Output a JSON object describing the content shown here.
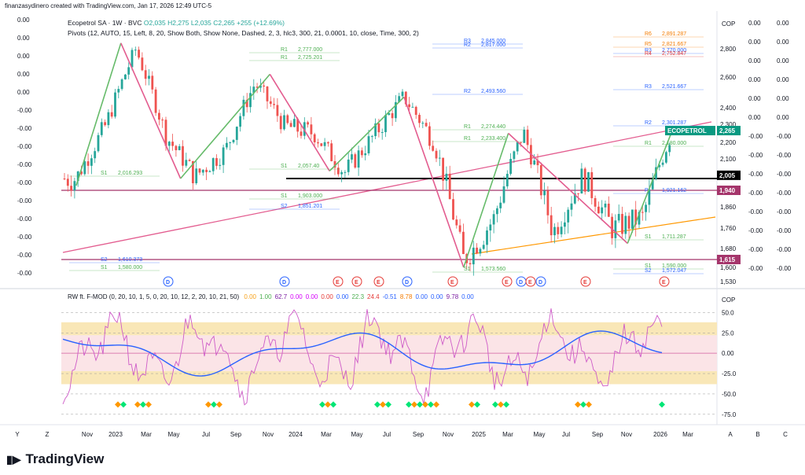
{
  "header": {
    "created_by": "finanzasydinero created with TradingView.com, Jan 17, 2026 12:49 UTC-5"
  },
  "legend": {
    "symbol": "Ecopetrol SA · 1W · BVC",
    "ohlc": "O2,035  H2,275  L2,035  C2,265  +255 (+12.69%)",
    "pivots": "Pivots (12, AUTO, 15, Left, 8, 20, Show Both, Show None, Dashed, 2, 3, hlc3, 300, 21, 0.0001, 10, close, Time, 300, 2)"
  },
  "indicator": {
    "name": "RW ft. F-MOD (0, 20, 10, 1, 5, 0, 20, 10, 12, 2, 20, 10, 21, 50)",
    "values": [
      {
        "t": "0.00",
        "c": "#f7a21b"
      },
      {
        "t": "1.00",
        "c": "#4caf50"
      },
      {
        "t": "62.7",
        "c": "#7b1fa2"
      },
      {
        "t": "0.00",
        "c": "#d500f9"
      },
      {
        "t": "0.00",
        "c": "#d500f9"
      },
      {
        "t": "0.00",
        "c": "#e53935"
      },
      {
        "t": "0.00",
        "c": "#2962ff"
      },
      {
        "t": "22.3",
        "c": "#4caf50"
      },
      {
        "t": "24.4",
        "c": "#e53935"
      },
      {
        "t": "-0.51",
        "c": "#2962ff"
      },
      {
        "t": "8.78",
        "c": "#f57c00"
      },
      {
        "t": "0.00",
        "c": "#2962ff"
      },
      {
        "t": "0.00",
        "c": "#2962ff"
      },
      {
        "t": "9.78",
        "c": "#7b1fa2"
      },
      {
        "t": "0.00",
        "c": "#2962ff"
      }
    ]
  },
  "currency": "COP",
  "left_axis": [
    "0.00",
    "0.00",
    "0.00",
    "0.00",
    "0.00",
    "-0.00",
    "-0.00",
    "-0.00",
    "-0.00",
    "-0.00",
    "-0.00",
    "-0.00",
    "-0.00",
    "-0.00",
    "-0.00"
  ],
  "right_axis_outer": [
    "0.00",
    "0.00",
    "0.00",
    "0.00",
    "0.00",
    "0.00",
    "-0.00",
    "-0.00",
    "-0.00",
    "-0.00",
    "-0.00",
    "-0.00",
    "-0.00",
    "-0.00"
  ],
  "price_tags": {
    "last": {
      "label": "ECOPETROL",
      "value": "2,265"
    },
    "level_black": "2,005",
    "level_upper_magenta": "1,940",
    "level_lower_magenta": "1,615"
  },
  "pivot_labels": [
    {
      "t": "R6",
      "v": "2,891.287",
      "c": "#f57c00"
    },
    {
      "t": "R3",
      "v": "2,845.000",
      "c": "#2962ff"
    },
    {
      "t": "R2",
      "v": "2,817.000",
      "c": "#2962ff"
    },
    {
      "t": "R5",
      "v": "2,821.667",
      "c": "#f57c00"
    },
    {
      "t": "R1",
      "v": "2,777.000",
      "c": "#4caf50"
    },
    {
      "t": "R3",
      "v": "2,770.000",
      "c": "#2962ff"
    },
    {
      "t": "R4",
      "v": "2,752.847",
      "c": "#e53935"
    },
    {
      "t": "R1",
      "v": "2,725.201",
      "c": "#4caf50"
    },
    {
      "t": "R3",
      "v": "2,521.667",
      "c": "#2962ff"
    },
    {
      "t": "R2",
      "v": "2,493.560",
      "c": "#2962ff"
    },
    {
      "t": "R2",
      "v": "2,301.287",
      "c": "#2962ff"
    },
    {
      "t": "R1",
      "v": "2,274.440",
      "c": "#4caf50"
    },
    {
      "t": "R1",
      "v": "2,233.400",
      "c": "#4caf50"
    },
    {
      "t": "R1",
      "v": "2,180.000",
      "c": "#4caf50"
    },
    {
      "t": "S1",
      "v": "2,057.40",
      "c": "#4caf50"
    },
    {
      "t": "S1",
      "v": "2,016.293",
      "c": "#4caf50"
    },
    {
      "t": "S1",
      "v": "1,903.000",
      "c": "#4caf50"
    },
    {
      "t": "S2",
      "v": "1,851.201",
      "c": "#2962ff"
    },
    {
      "t": "S1",
      "v": "1,711.287",
      "c": "#4caf50"
    },
    {
      "t": "S2",
      "v": "1,610.373",
      "c": "#2962ff"
    },
    {
      "t": "S1",
      "v": "1,580.000",
      "c": "#4caf50"
    },
    {
      "t": "S1",
      "v": "1,573.560",
      "c": "#4caf50"
    },
    {
      "t": "S1",
      "v": "1,590.000",
      "c": "#4caf50"
    },
    {
      "t": "S2",
      "v": "1,572.047",
      "c": "#2962ff"
    },
    {
      "t": "P",
      "v": "1,921.162",
      "c": "#2962ff"
    }
  ],
  "osc_axis": [
    "50.0",
    "25.0",
    "0.00",
    "-25.0",
    "-50.0",
    "-75.0"
  ],
  "time_axis": [
    "Y",
    "Z",
    "Nov",
    "2023",
    "Mar",
    "May",
    "Jul",
    "Sep",
    "Nov",
    "2024",
    "Mar",
    "May",
    "Jul",
    "Sep",
    "Nov",
    "2025",
    "Mar",
    "May",
    "Jul",
    "Sep",
    "Nov",
    "2026",
    "Mar",
    "A",
    "B",
    "C"
  ],
  "event_markers": [
    "D",
    "D",
    "E",
    "E",
    "E",
    "D",
    "E",
    "E",
    "D",
    "E",
    "D",
    "E",
    "E"
  ],
  "brand": "TradingView",
  "chart_data": {
    "type": "line",
    "title": "Ecopetrol SA · 1W · BVC",
    "ylabel": "COP",
    "ylim": [
      1520,
      3000
    ],
    "yticks": [
      2800,
      2600,
      2400,
      2300,
      2200,
      2100,
      2000,
      1860,
      1760,
      1680,
      1600,
      1530
    ],
    "x": [
      "2022-09",
      "2022-11",
      "2023-01",
      "2023-03",
      "2023-05",
      "2023-07",
      "2023-09",
      "2023-11",
      "2024-01",
      "2024-03",
      "2024-05",
      "2024-07",
      "2024-09",
      "2024-11",
      "2025-01",
      "2025-03",
      "2025-05",
      "2025-07",
      "2025-09",
      "2025-11",
      "2026-01"
    ],
    "series": [
      {
        "name": "Ecopetrol close",
        "values": [
          1990,
          2300,
          2800,
          2240,
          2000,
          2150,
          2560,
          2290,
          2250,
          2020,
          2240,
          2470,
          2200,
          1620,
          1800,
          2260,
          1740,
          2010,
          1760,
          1810,
          2265
        ]
      }
    ],
    "levels": {
      "black": 2005,
      "upper_magenta": 1940,
      "lower_magenta": 1615
    },
    "zigzag_points": [
      {
        "x": "2022-09",
        "y": 1960
      },
      {
        "x": "2022-12",
        "y": 2840
      },
      {
        "x": "2023-04",
        "y": 1990
      },
      {
        "x": "2023-10",
        "y": 2620
      },
      {
        "x": "2024-02",
        "y": 2030
      },
      {
        "x": "2024-07",
        "y": 2470
      },
      {
        "x": "2024-11",
        "y": 1600
      },
      {
        "x": "2025-02",
        "y": 2250
      },
      {
        "x": "2025-10",
        "y": 1700
      },
      {
        "x": "2026-01",
        "y": 2265
      }
    ]
  }
}
